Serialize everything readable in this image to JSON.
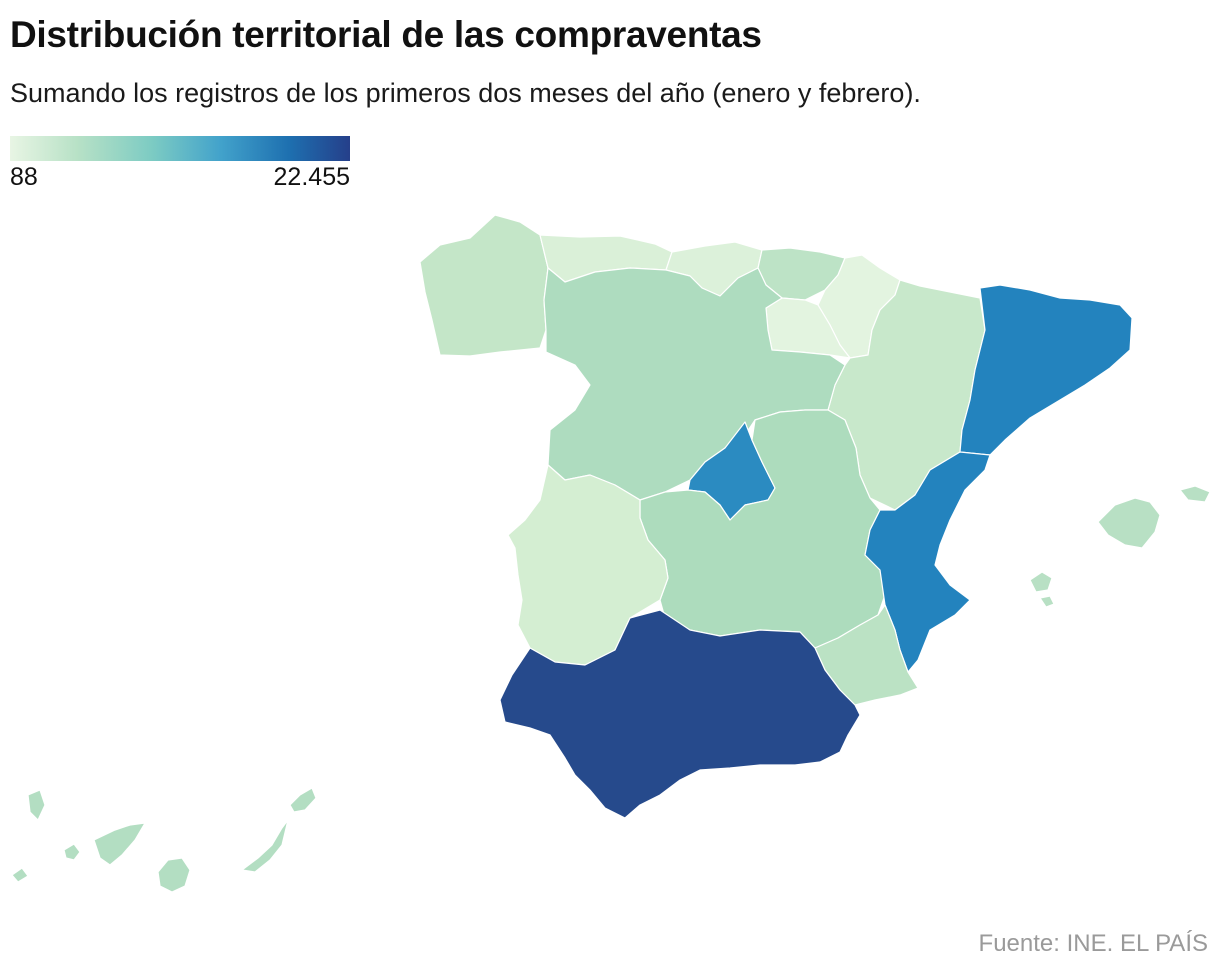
{
  "title": "Distribución territorial de las compraventas",
  "subtitle": "Sumando los registros de los primeros dos meses del año (enero y febrero).",
  "legend": {
    "min_label": "88",
    "max_label": "22.455",
    "color_min": "#e8f5e4",
    "color_max": "#253f8a"
  },
  "regions": [
    {
      "name": "Galicia",
      "color": "#c4e6c8"
    },
    {
      "name": "Asturias",
      "color": "#daf0d8"
    },
    {
      "name": "Cantabria",
      "color": "#dcf1da"
    },
    {
      "name": "País Vasco",
      "color": "#bde3c6"
    },
    {
      "name": "Navarra",
      "color": "#e3f4e0"
    },
    {
      "name": "La Rioja",
      "color": "#e3f4e0"
    },
    {
      "name": "Aragón",
      "color": "#c8e8cb"
    },
    {
      "name": "Cataluña",
      "color": "#2383be"
    },
    {
      "name": "Castilla y León",
      "color": "#aedcbf"
    },
    {
      "name": "Madrid",
      "color": "#2b8bc1"
    },
    {
      "name": "Castilla-La Mancha",
      "color": "#addcbd"
    },
    {
      "name": "Extremadura",
      "color": "#d4eed2"
    },
    {
      "name": "Comunidad Valenciana",
      "color": "#2383be"
    },
    {
      "name": "Región de Murcia",
      "color": "#bbe2c4"
    },
    {
      "name": "Andalucía",
      "color": "#264a8c"
    },
    {
      "name": "Islas Baleares",
      "color": "#b8e0c4"
    },
    {
      "name": "Canarias",
      "color": "#b3dec2"
    }
  ],
  "source": "Fuente: INE. EL PAÍS"
}
